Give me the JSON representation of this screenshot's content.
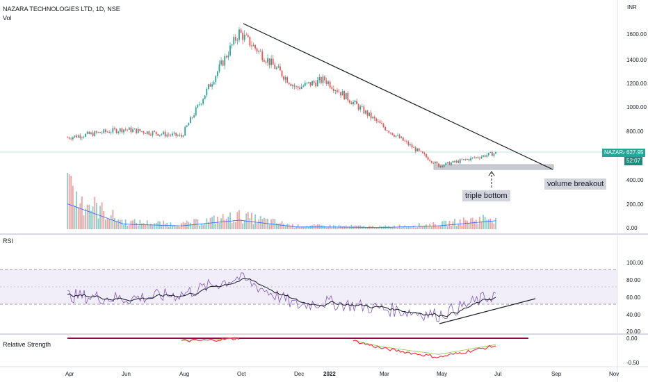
{
  "header": {
    "symbol_line": "NAZARA TECHNOLOGIES LTD, 1D, NSE",
    "vol_label": "Vol",
    "currency": "INR"
  },
  "price_tag": {
    "symbol": "NAZARA",
    "price": "627.95",
    "countdown": "52:07"
  },
  "annotations": {
    "triple_bottom": "triple bottom",
    "volume_breakout": "volume breakout"
  },
  "panes": {
    "rsi_label": "RSI",
    "rs_label": "Relative Strength"
  },
  "colors": {
    "up": "#26a69a",
    "down": "#ef5350",
    "rsi_line": "#7e57c2",
    "rsi_band": "#ede7f6",
    "rs_line": "#f23645"
  },
  "chart_data": [
    {
      "type": "candlestick",
      "title": "NAZARA TECHNOLOGIES LTD, 1D, NSE",
      "x_ticks": [
        "Apr",
        "Jun",
        "Aug",
        "Oct",
        "Dec",
        "2022",
        "Mar",
        "May",
        "Jul",
        "Sep",
        "Nov"
      ],
      "y_ticks": [
        "1600.00",
        "1400.00",
        "1200.00",
        "1000.00",
        "800.00",
        "400.00",
        "200.00",
        "0.00"
      ],
      "ylim": [
        0,
        1760
      ],
      "last_price": 627.95,
      "series": [
        {
          "name": "price",
          "x": [
            "Apr",
            "Jun",
            "Aug",
            "Oct",
            "Dec",
            "2022",
            "Mar",
            "May",
            "Jul"
          ],
          "values": [
            760,
            830,
            770,
            1650,
            1180,
            1250,
            860,
            520,
            627.95
          ]
        }
      ],
      "volume": {
        "x": [
          "Apr",
          "Jun",
          "Aug",
          "Oct",
          "Dec",
          "2022",
          "Mar",
          "May",
          "Jul"
        ],
        "values": [
          450,
          90,
          60,
          160,
          40,
          40,
          30,
          60,
          150
        ]
      }
    },
    {
      "type": "line",
      "title": "RSI",
      "y_ticks": [
        "100.00",
        "80.00",
        "60.00",
        "40.00",
        "20.00"
      ],
      "ylim": [
        0,
        100
      ],
      "bands": [
        70,
        50,
        30
      ],
      "series": [
        {
          "x": [
            "Apr",
            "Jun",
            "Aug",
            "Oct",
            "Dec",
            "2022",
            "Mar",
            "May",
            "Jul"
          ],
          "values": [
            60,
            55,
            62,
            88,
            45,
            50,
            40,
            30,
            62
          ]
        }
      ]
    },
    {
      "type": "line",
      "title": "Relative Strength",
      "y_ticks": [
        "0.00",
        "-0.50"
      ],
      "ylim": [
        -0.6,
        0.1
      ],
      "series": [
        {
          "x": [
            "Aug",
            "Sep",
            "Oct",
            "Feb",
            "Mar",
            "May",
            "Jul"
          ],
          "values": [
            -0.05,
            -0.04,
            0.0,
            -0.05,
            -0.2,
            -0.38,
            -0.15
          ]
        }
      ]
    }
  ]
}
